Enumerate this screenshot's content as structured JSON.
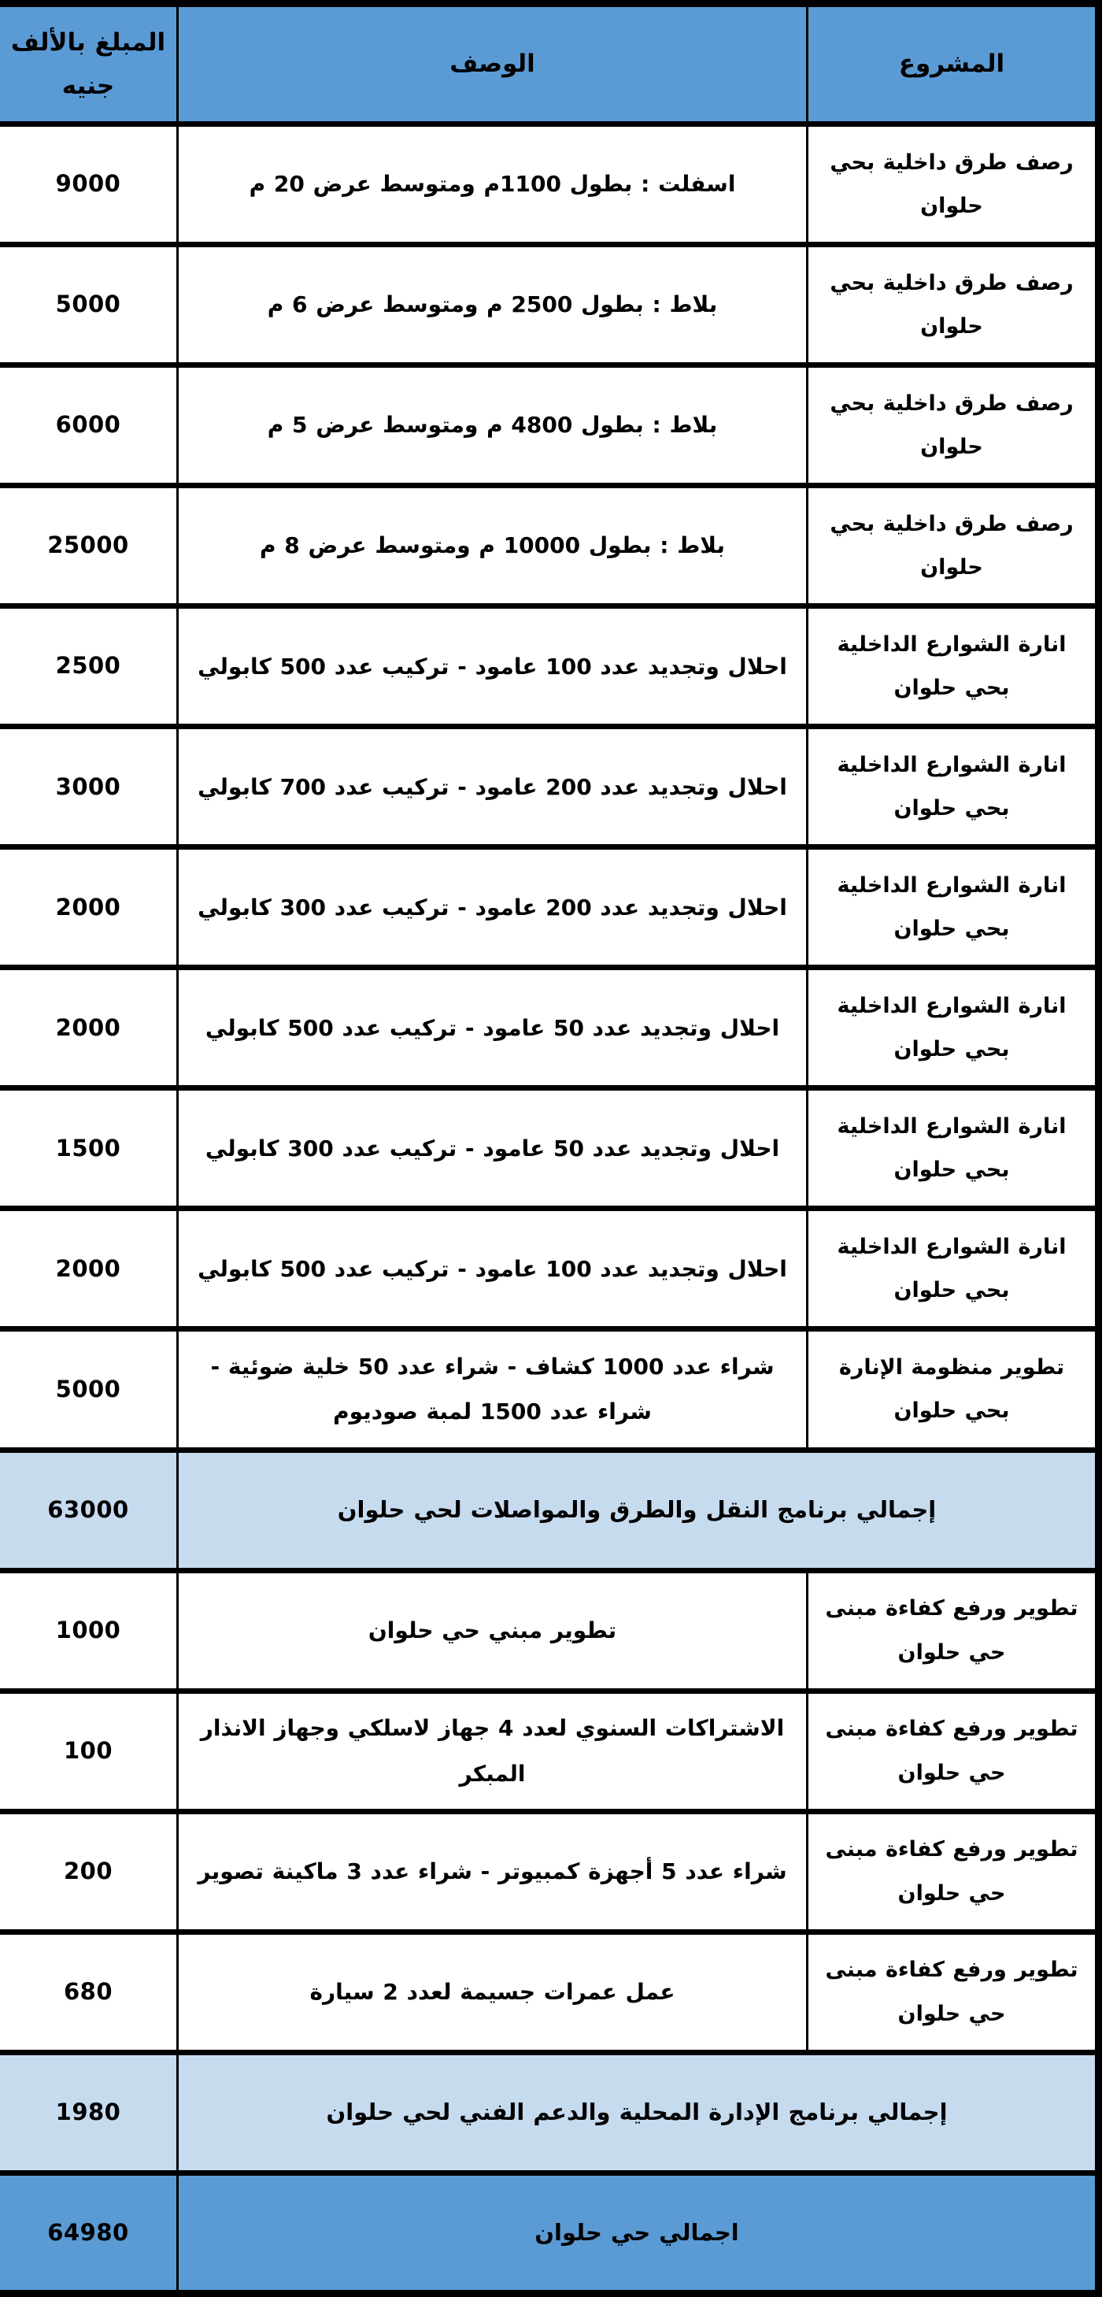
{
  "table": {
    "columns": [
      {
        "key": "project",
        "label": "المشروع"
      },
      {
        "key": "description",
        "label": "الوصف"
      },
      {
        "key": "amount",
        "label": "المبلغ بالألف جنيه"
      }
    ],
    "colors": {
      "header_bg": "#5B9BD5",
      "subtotal_bg": "#C7DBEF",
      "total_bg": "#5B9BD5",
      "row_bg": "#FFFFFF",
      "border": "#000000",
      "text": "#000000"
    },
    "rows": [
      {
        "type": "data",
        "project": "رصف طرق داخلية بحي حلوان",
        "description": "اسفلت : بطول 1100م ومتوسط عرض 20 م",
        "amount": "9000"
      },
      {
        "type": "data",
        "project": "رصف طرق داخلية بحي حلوان",
        "description": "بلاط : بطول 2500 م ومتوسط عرض 6 م",
        "amount": "5000"
      },
      {
        "type": "data",
        "project": "رصف طرق داخلية بحي حلوان",
        "description": "بلاط : بطول 4800 م ومتوسط عرض 5 م",
        "amount": "6000"
      },
      {
        "type": "data",
        "project": "رصف طرق داخلية بحي حلوان",
        "description": "بلاط : بطول 10000 م ومتوسط عرض 8 م",
        "amount": "25000"
      },
      {
        "type": "data",
        "project": "انارة الشوارع الداخلية بحي حلوان",
        "description": "احلال وتجديد عدد 100 عامود - تركيب عدد 500 كابولي",
        "amount": "2500"
      },
      {
        "type": "data",
        "project": "انارة الشوارع الداخلية بحي حلوان",
        "description": "احلال وتجديد عدد 200 عامود - تركيب عدد 700 كابولي",
        "amount": "3000"
      },
      {
        "type": "data",
        "project": "انارة الشوارع الداخلية بحي حلوان",
        "description": "احلال وتجديد عدد 200 عامود - تركيب عدد 300 كابولي",
        "amount": "2000"
      },
      {
        "type": "data",
        "project": "انارة الشوارع الداخلية بحي حلوان",
        "description": "احلال وتجديد عدد 50 عامود - تركيب عدد 500 كابولي",
        "amount": "2000"
      },
      {
        "type": "data",
        "project": "انارة الشوارع الداخلية بحي حلوان",
        "description": "احلال وتجديد عدد 50 عامود - تركيب عدد 300 كابولي",
        "amount": "1500"
      },
      {
        "type": "data",
        "project": "انارة الشوارع الداخلية بحي حلوان",
        "description": "احلال وتجديد عدد 100 عامود - تركيب عدد 500 كابولي",
        "amount": "2000"
      },
      {
        "type": "data",
        "project": "تطوير منظومة الإنارة بحي حلوان",
        "description": "شراء عدد 1000 كشاف - شراء عدد 50 خلية ضوئية - شراء عدد 1500 لمبة صوديوم",
        "amount": "5000"
      },
      {
        "type": "subtotal",
        "label": "إجمالي برنامج النقل والطرق والمواصلات لحي حلوان",
        "amount": "63000"
      },
      {
        "type": "data",
        "project": "تطوير ورفع كفاءة مبنى حي حلوان",
        "description": "تطوير مبني حي حلوان",
        "amount": "1000"
      },
      {
        "type": "data",
        "project": "تطوير ورفع كفاءة مبنى حي حلوان",
        "description": "الاشتراكات السنوي لعدد 4 جهاز لاسلكي وجهاز الانذار المبكر",
        "amount": "100"
      },
      {
        "type": "data",
        "project": "تطوير ورفع كفاءة مبنى حي حلوان",
        "description": "شراء عدد 5 أجهزة كمبيوتر - شراء عدد 3 ماكينة تصوير",
        "amount": "200"
      },
      {
        "type": "data",
        "project": "تطوير ورفع كفاءة مبنى حي حلوان",
        "description": "عمل عمرات جسيمة لعدد 2 سيارة",
        "amount": "680"
      },
      {
        "type": "subtotal",
        "label": "إجمالي برنامج الإدارة المحلية والدعم الفني لحي حلوان",
        "amount": "1980"
      },
      {
        "type": "total",
        "label": "اجمالي حي حلوان",
        "amount": "64980"
      }
    ]
  }
}
